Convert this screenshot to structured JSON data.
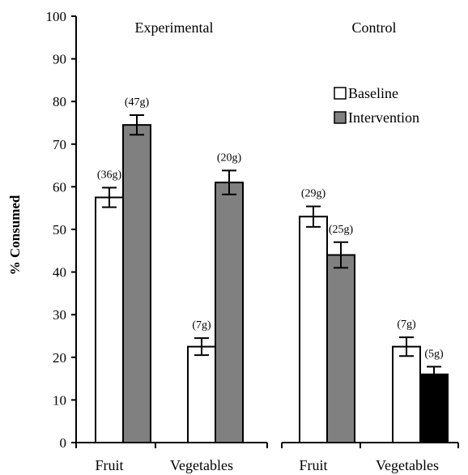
{
  "chart_data": {
    "type": "bar",
    "ylabel": "% Consumed",
    "ylim": [
      0,
      100
    ],
    "yticks": [
      0,
      10,
      20,
      30,
      40,
      50,
      60,
      70,
      80,
      90,
      100
    ],
    "legend": {
      "placement": "top-right",
      "entries": [
        {
          "label": "Baseline",
          "color": "#ffffff"
        },
        {
          "label": "Intervention",
          "color": "#808080"
        }
      ]
    },
    "panels": [
      {
        "title": "Experimental",
        "categories": [
          "Fruit",
          "Vegetables"
        ],
        "groups": [
          {
            "category": "Fruit",
            "bars": [
              {
                "series": "Baseline",
                "value": 57.5,
                "error": 2.3,
                "label": "(36g)",
                "color": "#ffffff"
              },
              {
                "series": "Intervention",
                "value": 74.5,
                "error": 2.3,
                "label": "(47g)",
                "color": "#808080"
              }
            ]
          },
          {
            "category": "Vegetables",
            "bars": [
              {
                "series": "Baseline",
                "value": 22.5,
                "error": 2.0,
                "label": "(7g)",
                "color": "#ffffff"
              },
              {
                "series": "Intervention",
                "value": 61,
                "error": 2.8,
                "label": "(20g)",
                "color": "#808080"
              }
            ]
          }
        ]
      },
      {
        "title": "Control",
        "categories": [
          "Fruit",
          "Vegetables"
        ],
        "groups": [
          {
            "category": "Fruit",
            "bars": [
              {
                "series": "Baseline",
                "value": 53,
                "error": 2.4,
                "label": "(29g)",
                "color": "#ffffff"
              },
              {
                "series": "Intervention",
                "value": 44,
                "error": 3.0,
                "label": "(25g)",
                "color": "#808080"
              }
            ]
          },
          {
            "category": "Vegetables",
            "bars": [
              {
                "series": "Baseline",
                "value": 22.5,
                "error": 2.2,
                "label": "(7g)",
                "color": "#ffffff"
              },
              {
                "series": "Intervention",
                "value": 16,
                "error": 1.8,
                "label": "(5g)",
                "color": "#000000"
              }
            ]
          }
        ]
      }
    ]
  }
}
